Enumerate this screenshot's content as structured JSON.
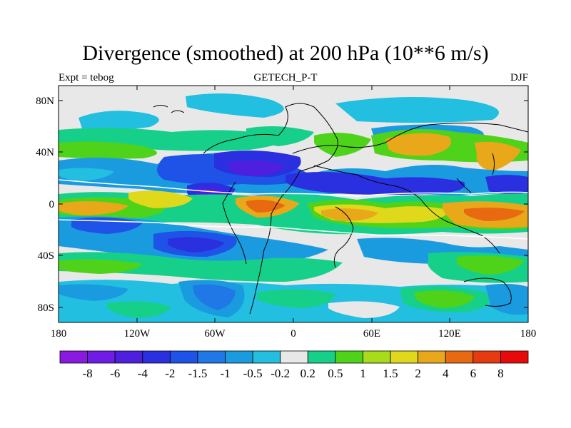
{
  "title": "Divergence (smoothed) at 200 hPa (10**6 m/s)",
  "subtitle_left": "Expt = tebog",
  "subtitle_center": "GETECH_P-T",
  "subtitle_right": "DJF",
  "lat_labels": [
    "80N",
    "40N",
    "0",
    "40S",
    "80S"
  ],
  "lon_labels": [
    "180",
    "120W",
    "60W",
    "0",
    "60E",
    "120E",
    "180"
  ],
  "colorbar": {
    "labels": [
      "-8",
      "-6",
      "-4",
      "-2",
      "-1.5",
      "-1",
      "-0.5",
      "-0.2",
      "0.2",
      "0.5",
      "1",
      "1.5",
      "2",
      "4",
      "6",
      "8"
    ],
    "colors": [
      "#8a1ae0",
      "#6f1de6",
      "#4f1fe0",
      "#2a30e0",
      "#1f52e6",
      "#1f78e6",
      "#1a9be0",
      "#22bfe0",
      "#e8e8e8",
      "#16d08a",
      "#4fd21a",
      "#a8dc1a",
      "#e0d81a",
      "#e8a81a",
      "#e86a10",
      "#e83a10",
      "#e80a0a"
    ]
  }
}
